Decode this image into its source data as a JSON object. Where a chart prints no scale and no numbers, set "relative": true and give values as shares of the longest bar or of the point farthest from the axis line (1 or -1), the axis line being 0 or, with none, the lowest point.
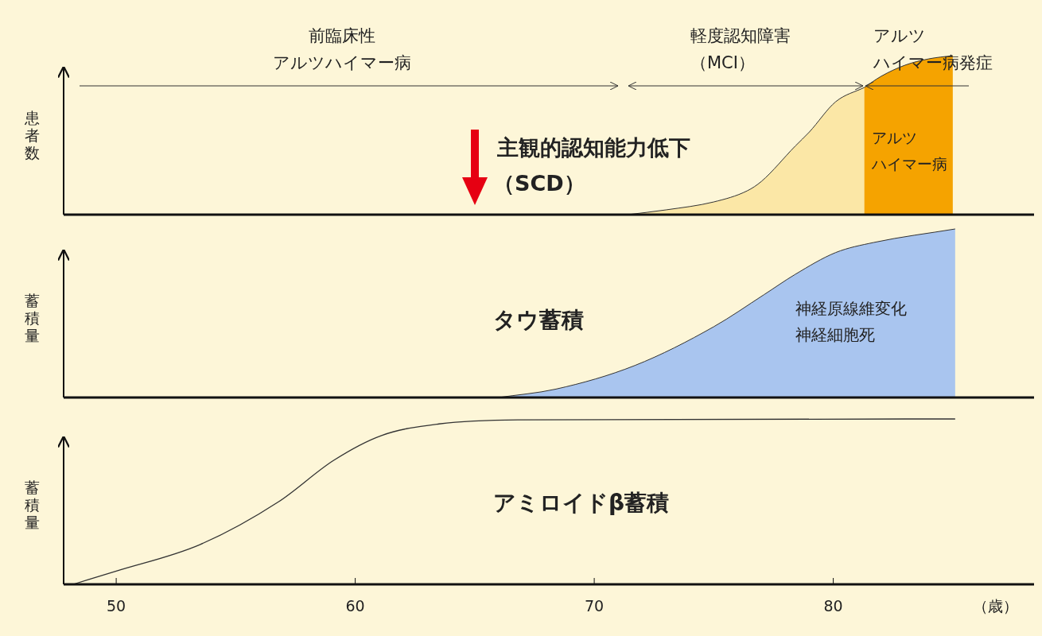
{
  "chart_data": [
    {
      "type": "area",
      "relative": true,
      "xlim": [
        47.8,
        88.4
      ],
      "tick_labels": false,
      "ylabel": "患者数",
      "series": [
        {
          "color": "#fbe7a6",
          "x": [
            71.4,
            73,
            75,
            76.4,
            77,
            78.4,
            79,
            80.1,
            81.3
          ],
          "values": [
            0,
            0.03,
            0.08,
            0.15,
            0.21,
            0.43,
            0.52,
            0.71,
            0.8
          ]
        },
        {
          "color": "#f5a300",
          "x": [
            81.3,
            82,
            83,
            84,
            85
          ],
          "values": [
            0.8,
            0.87,
            0.94,
            0.98,
            1.0
          ]
        }
      ],
      "annotations": [
        "前臨床性",
        "アルツハイマー病",
        "軽度認知障害",
        "（MCI）",
        "アルツ",
        "ハイマー病発症",
        "主観的認知能力低下",
        "（SCD）",
        "アルツ",
        "ハイマー病"
      ]
    },
    {
      "type": "area",
      "relative": true,
      "xlim": [
        47.8,
        88.4
      ],
      "tick_labels": false,
      "ylabel": "蓄積量",
      "series": [
        {
          "color": "#a9c5ef",
          "x": [
            66.0,
            68.4,
            71.7,
            75.0,
            77.1,
            78.4,
            80.1,
            81.7,
            85.1
          ],
          "values": [
            0,
            0.05,
            0.19,
            0.42,
            0.61,
            0.73,
            0.86,
            0.92,
            1.0
          ]
        }
      ],
      "annotations": [
        "タウ蓄積",
        "神経原線維変化",
        "神経細胞死"
      ]
    },
    {
      "type": "line",
      "relative": true,
      "xlim": [
        47.8,
        88.4
      ],
      "xticks": [
        50,
        60,
        70,
        80
      ],
      "tick_labels": "x",
      "xlabel": "（歳）",
      "ylabel": "蓄積量",
      "series": [
        {
          "color": "#333333",
          "x": [
            48.2,
            50,
            53.5,
            56.8,
            59.1,
            61.1,
            63.5,
            66.8,
            85.1
          ],
          "values": [
            0,
            0.08,
            0.24,
            0.5,
            0.75,
            0.9,
            0.97,
            0.995,
            1.0
          ]
        }
      ],
      "annotations": [
        "アミロイドβ蓄積"
      ]
    }
  ]
}
